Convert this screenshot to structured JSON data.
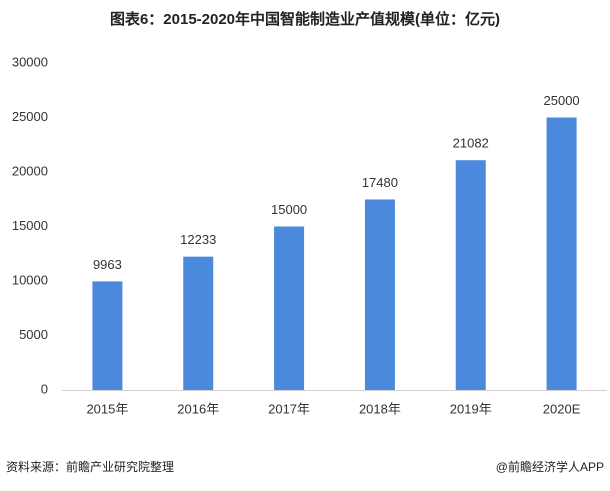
{
  "chart_data": {
    "type": "bar",
    "title": "图表6：2015-2020年中国智能制造业产值规模(单位：亿元)",
    "categories": [
      "2015年",
      "2016年",
      "2017年",
      "2018年",
      "2019年",
      "2020E"
    ],
    "values": [
      9963,
      12233,
      15000,
      17480,
      21082,
      25000
    ],
    "color": "#4a89dc",
    "ylim": [
      0,
      30000
    ],
    "yticks": [
      0,
      5000,
      10000,
      15000,
      20000,
      25000,
      30000
    ],
    "grid": false,
    "source": "资料来源：前瞻产业研究院整理",
    "credit": "@前瞻经济学人APP"
  }
}
